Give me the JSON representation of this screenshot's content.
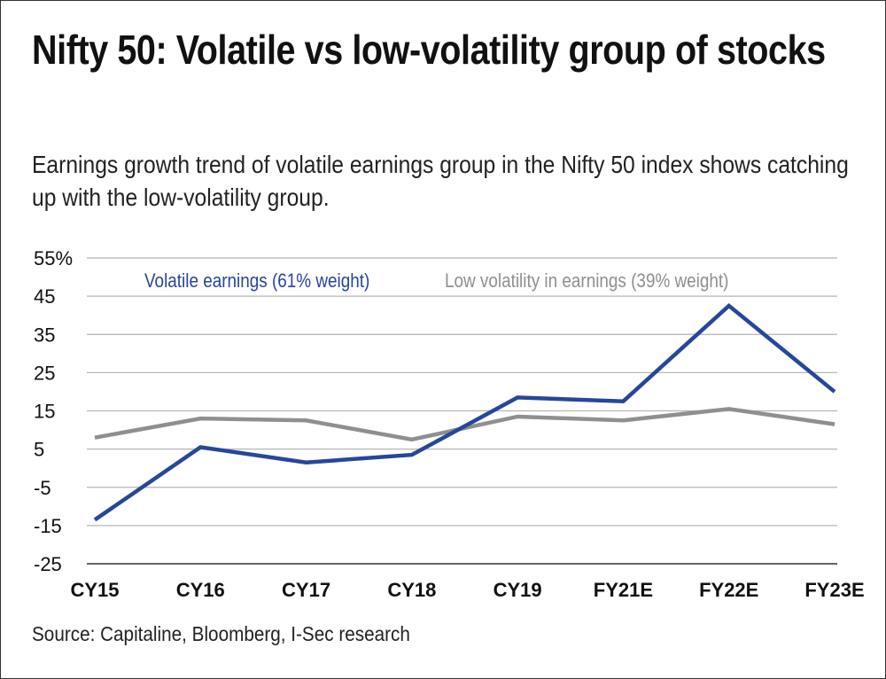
{
  "chart_data": {
    "type": "line",
    "title": "Nifty 50: Volatile vs low-volatility group of stocks",
    "subtitle": "Earnings growth trend of volatile earnings group in the Nifty 50 index shows catching up with the low-volatility group.",
    "source": "Source: Capitaline, Bloomberg, I-Sec research",
    "categories": [
      "CY15",
      "CY16",
      "CY17",
      "CY18",
      "CY19",
      "FY21E",
      "FY22E",
      "FY23E"
    ],
    "y_ticks": [
      "55%",
      "45",
      "35",
      "25",
      "15",
      "5",
      "-5",
      "-15",
      "-25"
    ],
    "ylim": [
      -25,
      55
    ],
    "grid": true,
    "legend_position": "top",
    "series": [
      {
        "name": "Volatile earnings (61% weight)",
        "color": "#26479a",
        "values": [
          -13.5,
          5.5,
          1.5,
          3.5,
          18.5,
          17.5,
          42.5,
          20
        ]
      },
      {
        "name": "Low volatility in earnings (39% weight)",
        "color": "#8f8f8f",
        "values": [
          8,
          13,
          12.5,
          7.5,
          13.5,
          12.5,
          15.5,
          11.5
        ]
      }
    ]
  }
}
